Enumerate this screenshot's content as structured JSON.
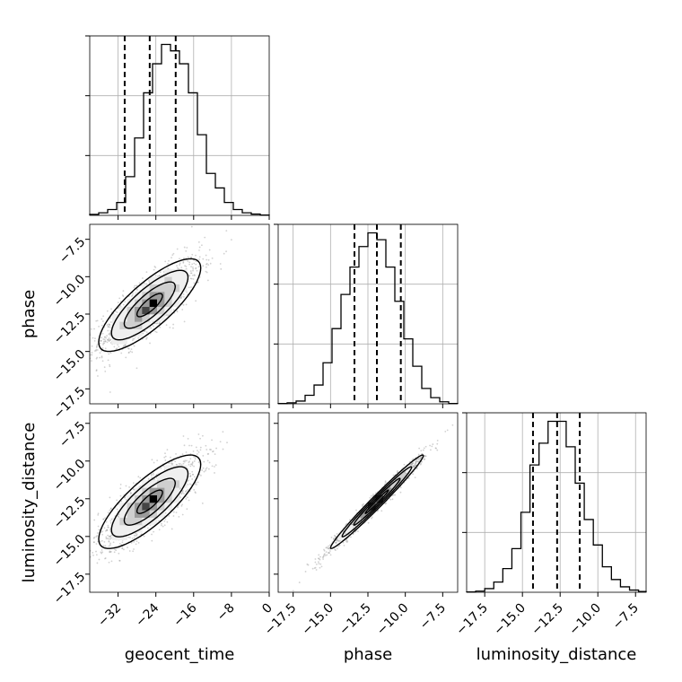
{
  "chart_data": {
    "type": "corner",
    "parameters": [
      "geocent_time",
      "phase",
      "luminosity_distance"
    ],
    "axis_labels": {
      "geocent_time": "geocent_time",
      "phase": "phase",
      "luminosity_distance": "luminosity_distance"
    },
    "ranges": {
      "geocent_time": [
        -38,
        0
      ],
      "phase": [
        -18.5,
        -6.5
      ],
      "luminosity_distance": [
        -18.7,
        -6.8
      ]
    },
    "ticks": {
      "geocent_time": [
        "-32",
        "-24",
        "-16",
        "-8",
        "0"
      ],
      "phase": [
        "-17.5",
        "-15.0",
        "-12.5",
        "-10.0",
        "-7.5"
      ],
      "luminosity_distance": [
        "-17.5",
        "-15.0",
        "-12.5",
        "-10.0",
        "-7.5"
      ]
    },
    "quantiles": {
      "geocent_time": [
        -30.6,
        -25.3,
        -19.8
      ],
      "phase": [
        -13.4,
        -11.9,
        -10.3
      ],
      "luminosity_distance": [
        -14.3,
        -12.7,
        -11.2
      ]
    },
    "histograms": {
      "geocent_time": {
        "edges": [
          -38,
          -36.1,
          -34.2,
          -32.3,
          -30.4,
          -28.5,
          -26.6,
          -24.7,
          -22.8,
          -20.9,
          -19,
          -17.1,
          -15.2,
          -13.3,
          -11.4,
          -9.5,
          -7.6,
          -5.7,
          -3.8,
          -1.9,
          0
        ],
        "counts": [
          3,
          8,
          18,
          40,
          120,
          240,
          380,
          470,
          530,
          510,
          470,
          380,
          250,
          130,
          85,
          40,
          18,
          8,
          4,
          1
        ]
      },
      "phase": {
        "edges": [
          -18.5,
          -17.9,
          -17.3,
          -16.7,
          -16.1,
          -15.5,
          -14.9,
          -14.3,
          -13.7,
          -13.1,
          -12.5,
          -11.9,
          -11.3,
          -10.7,
          -10.1,
          -9.5,
          -8.9,
          -8.3,
          -7.7,
          -7.1,
          -6.5
        ],
        "counts": [
          1,
          3,
          8,
          25,
          55,
          120,
          220,
          320,
          400,
          460,
          500,
          480,
          400,
          300,
          190,
          110,
          45,
          18,
          6,
          1
        ]
      },
      "luminosity_distance": {
        "edges": [
          -18.7,
          -18.1,
          -17.5,
          -16.9,
          -16.3,
          -15.7,
          -15.1,
          -14.5,
          -13.9,
          -13.3,
          -12.7,
          -12.1,
          -11.5,
          -10.9,
          -10.3,
          -9.7,
          -9.1,
          -8.5,
          -7.9,
          -7.3,
          -6.8
        ],
        "counts": [
          1,
          3,
          10,
          28,
          65,
          120,
          220,
          350,
          410,
          470,
          470,
          400,
          300,
          200,
          130,
          70,
          35,
          15,
          6,
          2
        ]
      }
    },
    "correlations": {
      "geocent_time|phase": 0.8,
      "geocent_time|luminosity_distance": 0.8,
      "phase|luminosity_distance": 0.985
    },
    "grid": true
  }
}
